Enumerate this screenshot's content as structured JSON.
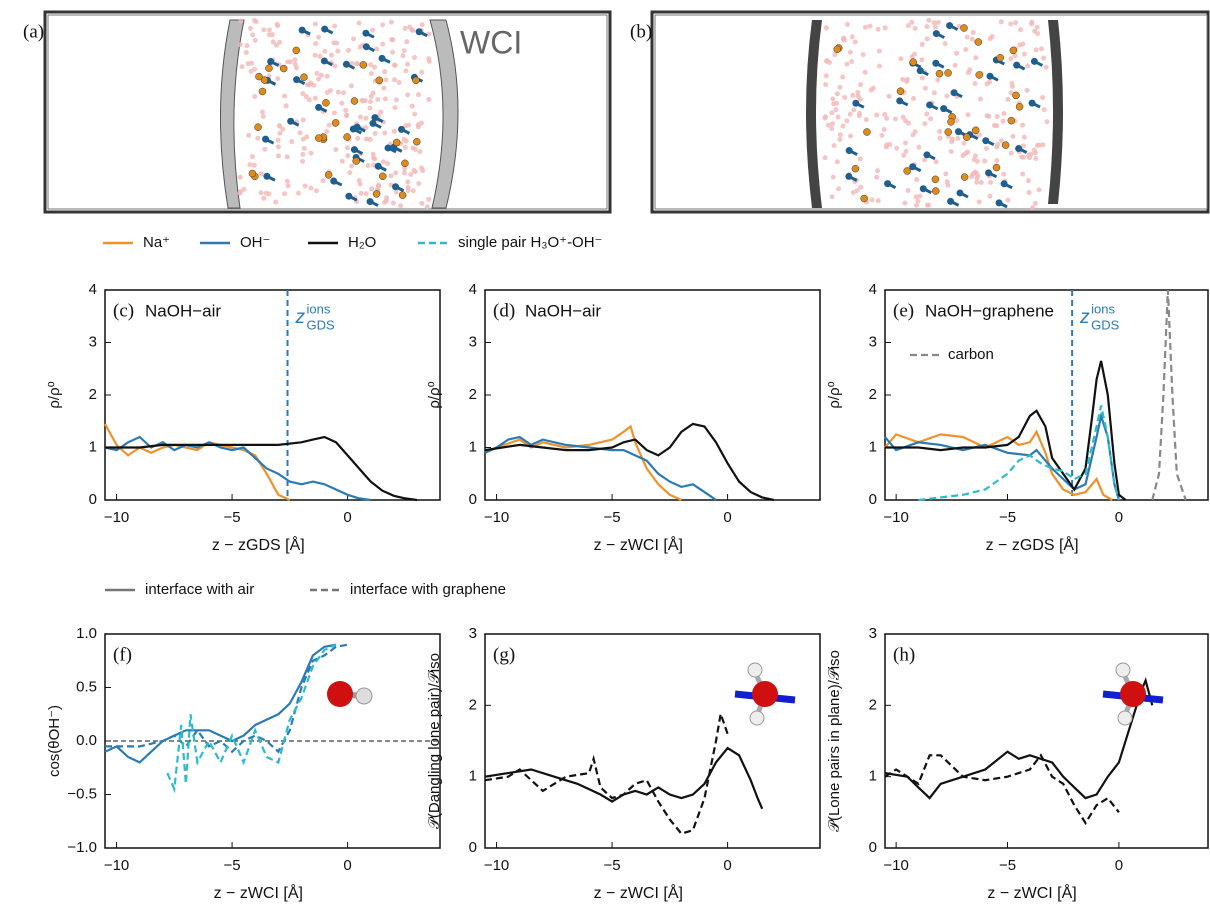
{
  "images": [
    {
      "label": "(a)",
      "annotation": "WCI"
    },
    {
      "label": "(b)"
    }
  ],
  "legend": [
    {
      "name": "Na⁺",
      "color": "#f0922c",
      "dash": false
    },
    {
      "name": "OH⁻",
      "color": "#2a7ab5",
      "dash": false
    },
    {
      "name": "H₂O",
      "color": "#111111",
      "dash": false
    },
    {
      "name": "single pair H₃O⁺-OH⁻",
      "color": "#2bbccc",
      "dash": true
    }
  ],
  "legend2": [
    {
      "name": "interface with air",
      "color": "#777777",
      "dash": false
    },
    {
      "name": "interface with graphene",
      "color": "#777777",
      "dash": true
    }
  ],
  "chart_data": [
    {
      "type": "line",
      "label": "(c)",
      "title": "NaOH−air",
      "xlabel": "z − zGDS [Å]",
      "ylabel": "ρ/ρ⁰",
      "xlim": [
        -10.5,
        4
      ],
      "ylim": [
        0,
        4
      ],
      "xticks": [
        {
          "value": -10,
          "label": "−10"
        },
        {
          "value": -5,
          "label": "−5"
        },
        0
      ],
      "yticks": [
        0,
        1,
        2,
        3,
        4
      ],
      "marker": {
        "x": -2.6,
        "color": "#2a7ab5",
        "text": "z",
        "sub": "GDS",
        "sup": "ions"
      },
      "series": [
        {
          "color": "#f0922c",
          "dash": false,
          "x": [
            -10.5,
            -10,
            -9.5,
            -9,
            -8.5,
            -8,
            -7.5,
            -7,
            -6.5,
            -6,
            -5.5,
            -5,
            -4.5,
            -4,
            -3.5,
            -3,
            -2.5
          ],
          "values": [
            1.45,
            1.05,
            0.85,
            1.0,
            0.9,
            1.0,
            1.05,
            1.0,
            0.95,
            1.1,
            1.05,
            1.0,
            0.95,
            0.85,
            0.5,
            0.1,
            0.0
          ]
        },
        {
          "color": "#2a7ab5",
          "dash": false,
          "x": [
            -10.5,
            -10,
            -9.5,
            -9,
            -8.5,
            -8,
            -7.5,
            -7,
            -6.5,
            -6,
            -5.5,
            -5,
            -4.5,
            -4,
            -3.5,
            -3,
            -2.5,
            -2,
            -1.5,
            -1,
            -0.5,
            0,
            0.5,
            1
          ],
          "values": [
            1.0,
            0.95,
            1.1,
            1.2,
            1.0,
            1.1,
            0.95,
            1.05,
            1.0,
            1.1,
            1.0,
            0.95,
            1.0,
            0.8,
            0.6,
            0.5,
            0.35,
            0.3,
            0.35,
            0.3,
            0.2,
            0.1,
            0.03,
            0.0
          ]
        },
        {
          "color": "#111111",
          "dash": false,
          "x": [
            -10.5,
            -9,
            -8,
            -7,
            -6,
            -5,
            -4,
            -3,
            -2,
            -1.5,
            -1,
            -0.5,
            0,
            0.5,
            1,
            1.5,
            2,
            2.5,
            3
          ],
          "values": [
            1.0,
            1.0,
            1.05,
            1.05,
            1.05,
            1.05,
            1.05,
            1.05,
            1.1,
            1.15,
            1.2,
            1.1,
            0.85,
            0.6,
            0.35,
            0.18,
            0.08,
            0.03,
            0.0
          ]
        }
      ]
    },
    {
      "type": "line",
      "label": "(d)",
      "title": "NaOH−air",
      "xlabel": "z − zWCI [Å]",
      "ylabel": "ρ/ρ⁰",
      "xlim": [
        -10.5,
        4
      ],
      "ylim": [
        0,
        4
      ],
      "xticks": [
        {
          "value": -10,
          "label": "−10"
        },
        {
          "value": -5,
          "label": "−5"
        },
        0
      ],
      "yticks": [
        0,
        1,
        2,
        3,
        4
      ],
      "series": [
        {
          "color": "#f0922c",
          "dash": false,
          "x": [
            -10.5,
            -10,
            -9,
            -8.5,
            -8,
            -7,
            -6,
            -5,
            -4.5,
            -4.2,
            -4,
            -3.5,
            -3,
            -2.5,
            -2
          ],
          "values": [
            0.9,
            1.0,
            1.15,
            1.0,
            1.1,
            1.0,
            1.05,
            1.15,
            1.3,
            1.4,
            1.1,
            0.6,
            0.3,
            0.1,
            0.0
          ]
        },
        {
          "color": "#2a7ab5",
          "dash": false,
          "x": [
            -10.5,
            -10,
            -9.5,
            -9,
            -8.5,
            -8,
            -7,
            -6,
            -5,
            -4.5,
            -4,
            -3.5,
            -3,
            -2.5,
            -2,
            -1.5,
            -1,
            -0.5
          ],
          "values": [
            0.9,
            1.0,
            1.15,
            1.2,
            1.05,
            1.15,
            1.05,
            1.0,
            0.95,
            0.95,
            0.85,
            0.75,
            0.5,
            0.35,
            0.25,
            0.3,
            0.15,
            0.0
          ]
        },
        {
          "color": "#111111",
          "dash": false,
          "x": [
            -10.5,
            -9,
            -8,
            -7,
            -6,
            -5,
            -4.5,
            -4,
            -3.5,
            -3,
            -2.5,
            -2,
            -1.5,
            -1,
            -0.5,
            0,
            0.5,
            1,
            1.5,
            2
          ],
          "values": [
            0.95,
            1.05,
            1.0,
            0.95,
            0.95,
            1.0,
            1.1,
            1.15,
            0.95,
            0.85,
            1.0,
            1.3,
            1.45,
            1.4,
            1.1,
            0.7,
            0.35,
            0.15,
            0.05,
            0.0
          ]
        }
      ]
    },
    {
      "type": "line",
      "label": "(e)",
      "title": "NaOH−graphene",
      "xlabel": "z − zGDS [Å]",
      "ylabel": "ρ/ρ⁰",
      "xlim": [
        -10.5,
        4
      ],
      "ylim": [
        0,
        4
      ],
      "xticks": [
        {
          "value": -10,
          "label": "−10"
        },
        {
          "value": -5,
          "label": "−5"
        },
        0
      ],
      "yticks": [
        0,
        1,
        2,
        3,
        4
      ],
      "marker": {
        "x": -2.1,
        "color": "#2a7ab5",
        "text": "z",
        "sub": "GDS",
        "sup": "ions"
      },
      "series": [
        {
          "color": "#f0922c",
          "dash": false,
          "x": [
            -10.5,
            -10,
            -9,
            -8,
            -7,
            -6,
            -5,
            -4.5,
            -4,
            -3.7,
            -3.3,
            -3,
            -2.5,
            -2,
            -1.5,
            -1,
            -0.7,
            -0.3
          ],
          "values": [
            1.0,
            1.25,
            1.1,
            1.25,
            1.2,
            1.0,
            1.2,
            1.05,
            1.1,
            1.3,
            0.9,
            0.5,
            0.2,
            0.1,
            0.15,
            0.4,
            0.1,
            0.0
          ]
        },
        {
          "color": "#2a7ab5",
          "dash": false,
          "x": [
            -10.5,
            -10,
            -9,
            -8,
            -7,
            -6,
            -5,
            -4,
            -3.7,
            -3,
            -2.5,
            -2,
            -1.5,
            -1,
            -0.8,
            -0.5,
            -0.2,
            0
          ],
          "values": [
            1.2,
            0.95,
            1.1,
            1.05,
            0.95,
            1.05,
            0.9,
            0.85,
            0.95,
            0.6,
            0.4,
            0.2,
            0.3,
            1.2,
            1.6,
            1.2,
            0.3,
            0.0
          ]
        },
        {
          "color": "#111111",
          "dash": false,
          "x": [
            -10.5,
            -9,
            -8,
            -7,
            -6,
            -5,
            -4.5,
            -4,
            -3.7,
            -3.3,
            -3,
            -2.5,
            -2,
            -1.5,
            -1.2,
            -1,
            -0.8,
            -0.5,
            -0.2,
            0,
            0.3
          ],
          "values": [
            1.0,
            1.0,
            0.95,
            1.0,
            1.0,
            1.05,
            1.2,
            1.6,
            1.7,
            1.4,
            0.8,
            0.5,
            0.2,
            0.6,
            1.6,
            2.3,
            2.65,
            2.0,
            0.7,
            0.1,
            0.0
          ]
        },
        {
          "color": "#2bbccc",
          "dash": true,
          "x": [
            -9,
            -8,
            -7,
            -6,
            -5.5,
            -5,
            -4.5,
            -4,
            -3.5,
            -3,
            -2.5,
            -2,
            -1.5,
            -1,
            -0.8,
            -0.5,
            -0.2,
            0
          ],
          "values": [
            0.0,
            0.05,
            0.1,
            0.2,
            0.35,
            0.5,
            0.75,
            0.85,
            0.7,
            0.6,
            0.55,
            0.4,
            0.5,
            1.4,
            1.8,
            1.2,
            0.3,
            0.0
          ]
        },
        {
          "name": "carbon",
          "color": "#888888",
          "dash": true,
          "x": [
            1.5,
            1.8,
            2,
            2.2,
            2.4,
            2.6,
            3
          ],
          "values": [
            0.0,
            0.5,
            2.0,
            4.0,
            2.0,
            0.5,
            0.0
          ]
        }
      ]
    },
    {
      "type": "line",
      "label": "(f)",
      "xlabel": "z − zWCI [Å]",
      "ylabel": "cos(θOH⁻)",
      "xlim": [
        -10.5,
        4
      ],
      "ylim": [
        -1,
        1
      ],
      "hline": 0,
      "xticks": [
        {
          "value": -10,
          "label": "−10"
        },
        {
          "value": -5,
          "label": "−5"
        },
        0
      ],
      "yticks": [
        {
          "value": -1,
          "label": "−1.0"
        },
        {
          "value": -0.5,
          "label": "−0.5"
        },
        {
          "value": 0,
          "label": "0.0"
        },
        {
          "value": 0.5,
          "label": "0.5"
        },
        {
          "value": 1,
          "label": "1.0"
        }
      ],
      "icon": "oh",
      "series": [
        {
          "color": "#2a7ab5",
          "dash": false,
          "x": [
            -10.5,
            -10,
            -9.5,
            -9,
            -8.5,
            -8,
            -7.5,
            -7,
            -6,
            -5.5,
            -5,
            -4.5,
            -4,
            -3.5,
            -3,
            -2.5,
            -2,
            -1.5,
            -1,
            -0.5
          ],
          "values": [
            -0.1,
            -0.05,
            -0.15,
            -0.2,
            -0.1,
            0.0,
            0.05,
            0.1,
            0.1,
            0.05,
            0.0,
            0.05,
            0.15,
            0.2,
            0.25,
            0.35,
            0.55,
            0.8,
            0.88,
            0.9
          ]
        },
        {
          "color": "#2a7ab5",
          "dash": true,
          "x": [
            -10.5,
            -10,
            -9,
            -8,
            -7.5,
            -7,
            -6.5,
            -6,
            -5.5,
            -5,
            -4.5,
            -4,
            -3.5,
            -3,
            -2.5,
            -2,
            -1.5,
            -1,
            -0.5,
            0
          ],
          "values": [
            -0.05,
            -0.05,
            -0.05,
            0.0,
            0.05,
            -0.05,
            0.1,
            -0.05,
            0.0,
            -0.1,
            0.0,
            0.05,
            0.0,
            -0.1,
            0.1,
            0.5,
            0.75,
            0.8,
            0.88,
            0.9
          ]
        },
        {
          "color": "#2bbccc",
          "dash": true,
          "x": [
            -7.8,
            -7.5,
            -7.2,
            -7,
            -6.8,
            -6.5,
            -6,
            -5.5,
            -5,
            -4.5,
            -4,
            -3.5,
            -3,
            -2.5,
            -2,
            -1.5,
            -1,
            -0.5
          ],
          "values": [
            -0.3,
            -0.45,
            0.15,
            -0.4,
            0.25,
            -0.2,
            0.0,
            -0.2,
            0.05,
            -0.2,
            0.1,
            -0.15,
            -0.2,
            0.2,
            0.4,
            0.7,
            0.85,
            0.9
          ]
        }
      ]
    },
    {
      "type": "line",
      "label": "(g)",
      "xlabel": "z − zWCI [Å]",
      "ylabel": "𝒫(Dangling lone pair)/𝒫iso",
      "xlim": [
        -10.5,
        4
      ],
      "ylim": [
        0,
        3
      ],
      "xticks": [
        {
          "value": -10,
          "label": "−10"
        },
        {
          "value": -5,
          "label": "−5"
        },
        0
      ],
      "yticks": [
        0,
        1,
        2,
        3
      ],
      "icon": "h2o",
      "series": [
        {
          "color": "#111111",
          "dash": false,
          "x": [
            -10.5,
            -9.5,
            -8.5,
            -7.5,
            -6.5,
            -5.5,
            -5,
            -4.5,
            -4,
            -3.5,
            -3,
            -2.5,
            -2,
            -1.5,
            -1,
            -0.5,
            0,
            0.5,
            1,
            1.3,
            1.5
          ],
          "values": [
            1.0,
            1.05,
            1.1,
            1.0,
            0.9,
            0.75,
            0.65,
            0.75,
            0.8,
            0.75,
            0.85,
            0.75,
            0.7,
            0.75,
            0.9,
            1.2,
            1.4,
            1.3,
            0.95,
            0.7,
            0.55
          ]
        },
        {
          "color": "#111111",
          "dash": true,
          "x": [
            -10.5,
            -9.5,
            -9,
            -8,
            -7,
            -6,
            -5.8,
            -5.5,
            -5,
            -4.5,
            -4,
            -3.5,
            -3,
            -2.5,
            -2,
            -1.5,
            -1,
            -0.5,
            -0.3,
            0
          ],
          "values": [
            0.95,
            1.0,
            1.1,
            0.8,
            1.0,
            1.05,
            1.25,
            0.85,
            0.7,
            0.75,
            0.9,
            0.95,
            0.65,
            0.4,
            0.2,
            0.25,
            0.7,
            1.5,
            1.88,
            1.6
          ]
        }
      ]
    },
    {
      "type": "line",
      "label": "(h)",
      "xlabel": "z − zWCI [Å]",
      "ylabel": "𝒫(Lone pairs in plane)/𝒫iso",
      "xlim": [
        -10.5,
        4
      ],
      "ylim": [
        0,
        3
      ],
      "xticks": [
        {
          "value": -10,
          "label": "−10"
        },
        {
          "value": -5,
          "label": "−5"
        },
        0
      ],
      "yticks": [
        0,
        1,
        2,
        3
      ],
      "icon": "h2o",
      "series": [
        {
          "color": "#111111",
          "dash": false,
          "x": [
            -10.5,
            -9.5,
            -9,
            -8.5,
            -8,
            -7,
            -6,
            -5,
            -4.5,
            -4,
            -3,
            -2.5,
            -2,
            -1.5,
            -1,
            -0.5,
            0,
            0.5,
            1,
            1.2,
            1.5
          ],
          "values": [
            1.05,
            1.0,
            0.85,
            0.7,
            0.9,
            1.0,
            1.1,
            1.35,
            1.25,
            1.3,
            1.2,
            1.0,
            0.85,
            0.7,
            0.75,
            1.0,
            1.2,
            1.7,
            2.2,
            2.35,
            2.0
          ]
        },
        {
          "color": "#111111",
          "dash": true,
          "x": [
            -10.5,
            -10,
            -9,
            -8.5,
            -8,
            -7,
            -6,
            -5,
            -4,
            -3.5,
            -3,
            -2.5,
            -2,
            -1.5,
            -1,
            -0.5,
            0
          ],
          "values": [
            1.0,
            1.1,
            0.9,
            1.3,
            1.3,
            1.0,
            0.95,
            1.0,
            1.1,
            1.3,
            1.0,
            0.9,
            0.6,
            0.35,
            0.6,
            0.7,
            0.5
          ]
        }
      ]
    }
  ]
}
